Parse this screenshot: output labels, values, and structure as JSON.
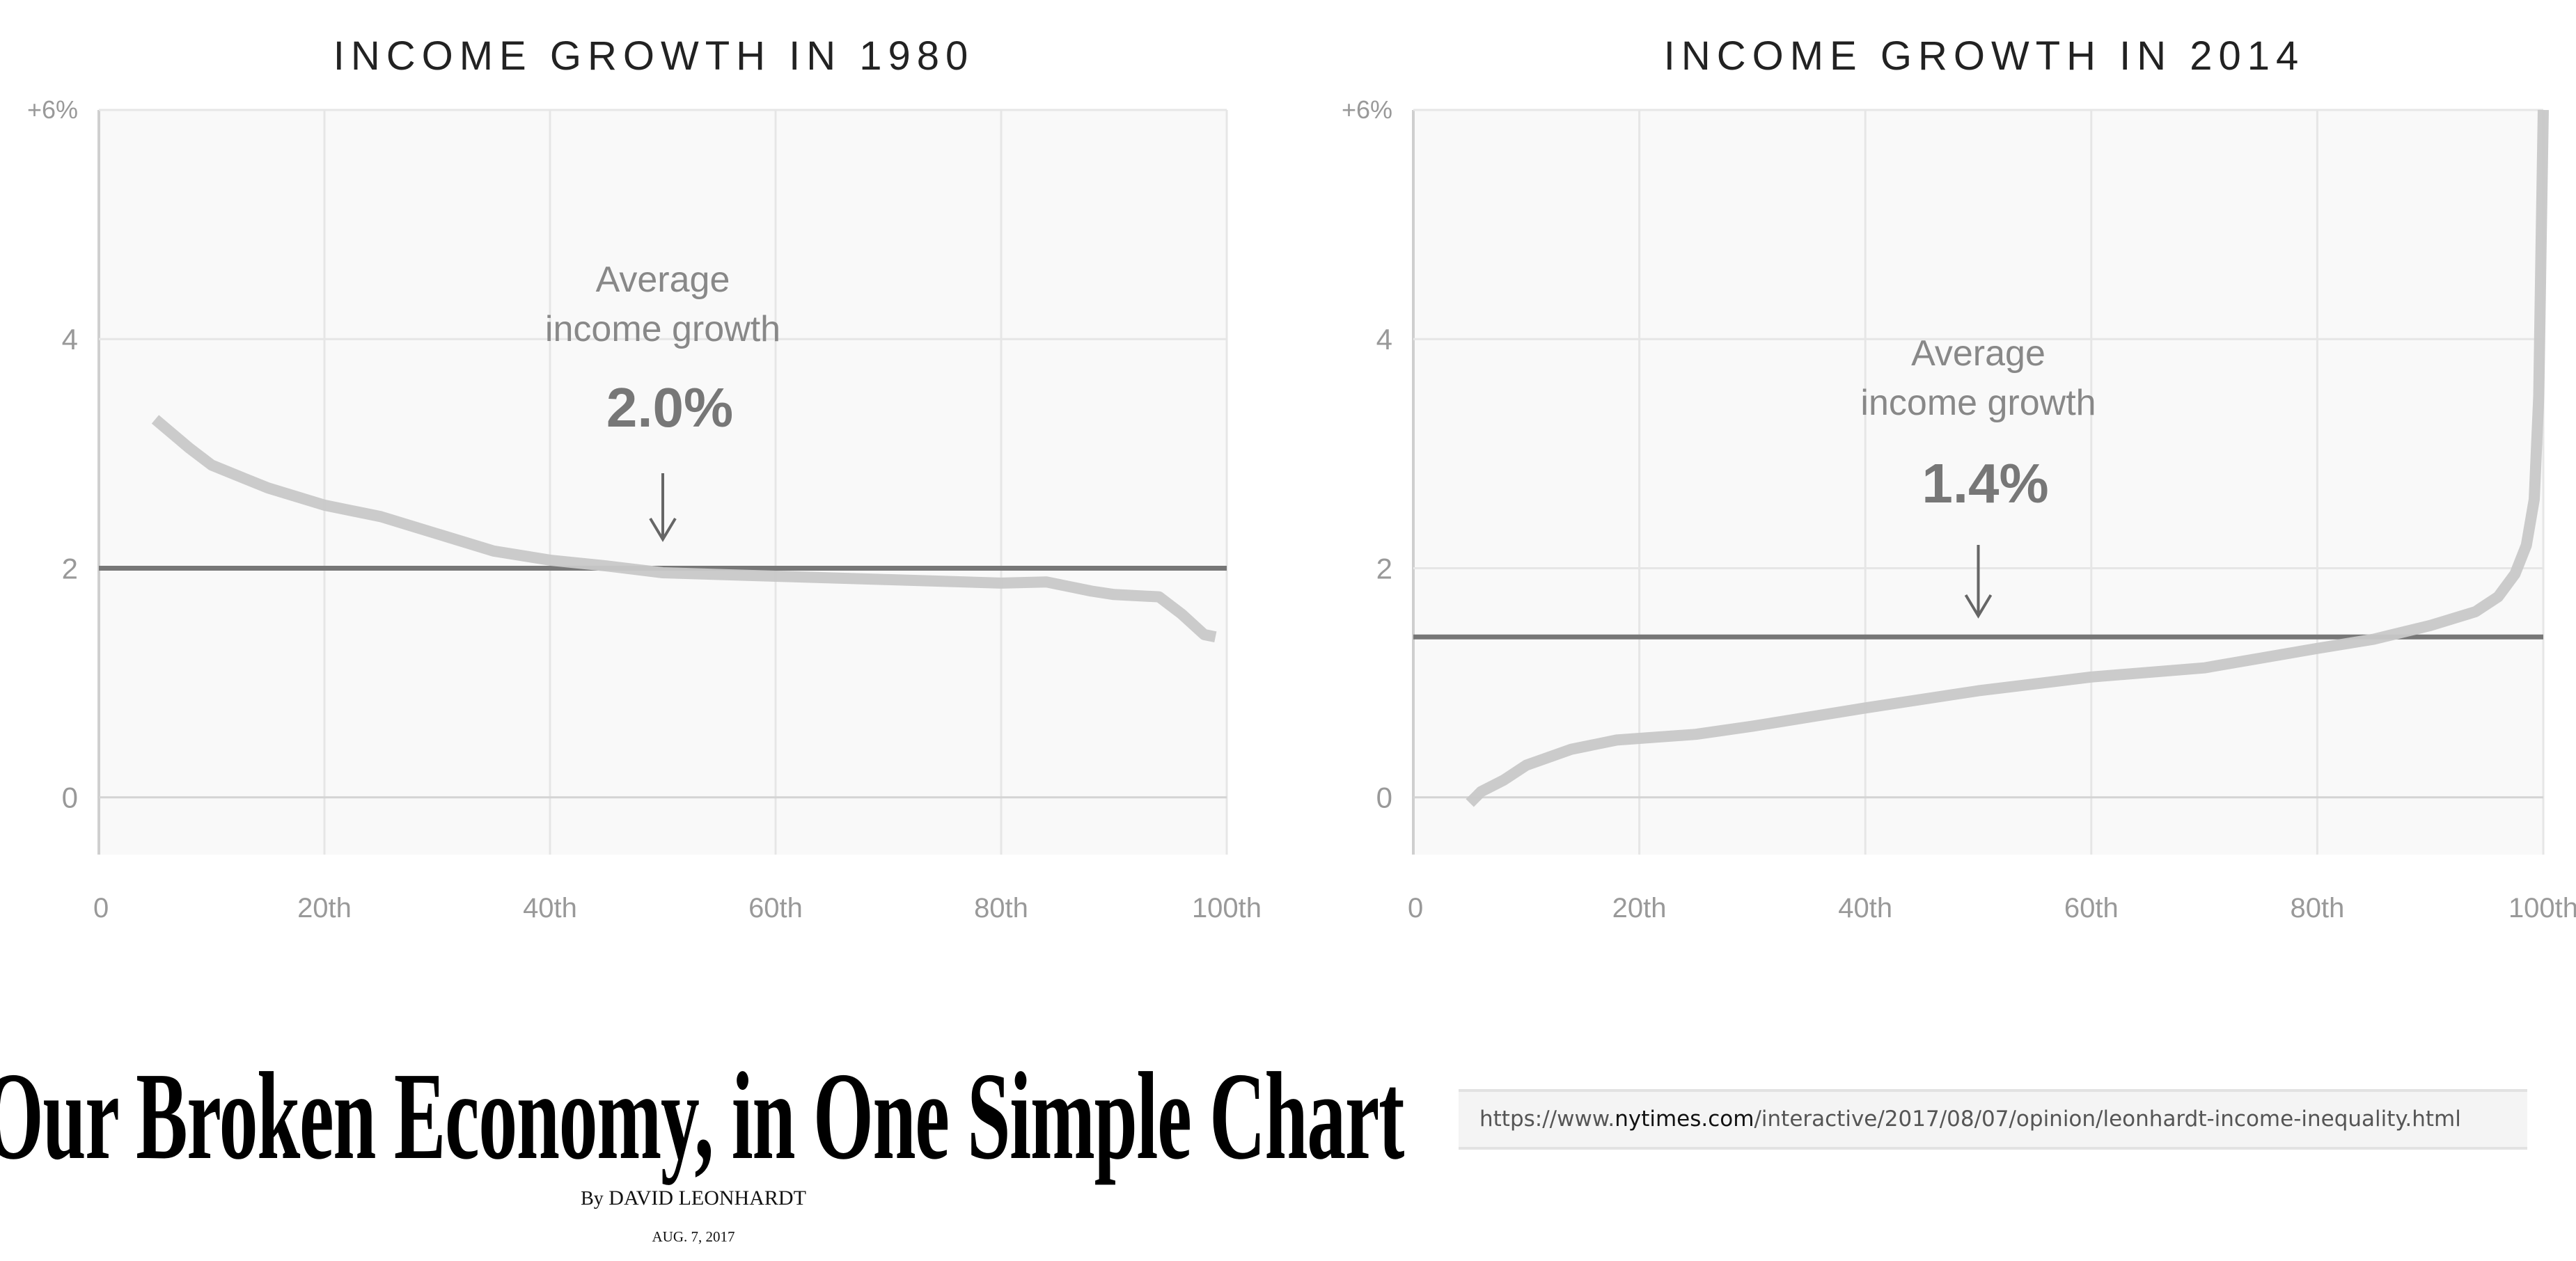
{
  "chart_data": [
    {
      "type": "line",
      "title": "INCOME GROWTH IN 1980",
      "xlim": [
        0,
        100
      ],
      "ylim": [
        -0.5,
        6
      ],
      "x_ticks": [
        0,
        20,
        40,
        60,
        80,
        100
      ],
      "x_tick_labels": [
        "0",
        "20th",
        "40th",
        "60th",
        "80th",
        "100th"
      ],
      "y_ticks": [
        0,
        2,
        4,
        6
      ],
      "y_tick_labels": [
        "0",
        "2",
        "4",
        "+6%"
      ],
      "grid": true,
      "series": [
        {
          "x": [
            5,
            8,
            10,
            13,
            15,
            20,
            25,
            30,
            35,
            40,
            45,
            50,
            60,
            70,
            80,
            84,
            88,
            90,
            94,
            96,
            98,
            99
          ],
          "y": [
            3.3,
            3.05,
            2.9,
            2.78,
            2.7,
            2.55,
            2.45,
            2.3,
            2.15,
            2.07,
            2.02,
            1.96,
            1.93,
            1.9,
            1.87,
            1.88,
            1.8,
            1.77,
            1.75,
            1.6,
            1.42,
            1.4
          ]
        }
      ],
      "average": 2.0,
      "annotation": {
        "line1": "Average",
        "line2": "income growth",
        "value": "2.0%",
        "x": 50
      },
      "colors": {
        "curve": "#c8c8c8",
        "average_line": "#777777",
        "plot_bg": "#f9f9f9",
        "grid": "#e6e6e6"
      }
    },
    {
      "type": "line",
      "title": "INCOME GROWTH IN 2014",
      "xlim": [
        0,
        100
      ],
      "ylim": [
        -0.5,
        6
      ],
      "x_ticks": [
        0,
        20,
        40,
        60,
        80,
        100
      ],
      "x_tick_labels": [
        "0",
        "20th",
        "40th",
        "60th",
        "80th",
        "100th"
      ],
      "y_ticks": [
        0,
        2,
        4,
        6
      ],
      "y_tick_labels": [
        "0",
        "2",
        "4",
        "+6%"
      ],
      "grid": true,
      "series": [
        {
          "x": [
            5,
            6,
            8,
            10,
            14,
            18,
            25,
            30,
            40,
            50,
            60,
            70,
            80,
            85,
            90,
            94,
            96,
            97.5,
            98.5,
            99.2,
            99.6,
            99.8,
            100
          ],
          "y": [
            -0.05,
            0.05,
            0.15,
            0.28,
            0.42,
            0.5,
            0.55,
            0.62,
            0.78,
            0.93,
            1.05,
            1.13,
            1.3,
            1.38,
            1.5,
            1.62,
            1.75,
            1.95,
            2.2,
            2.6,
            3.5,
            4.8,
            6.0
          ]
        }
      ],
      "average": 1.4,
      "annotation": {
        "line1": "Average",
        "line2": "income growth",
        "value": "1.4%",
        "x": 50
      },
      "colors": {
        "curve": "#c8c8c8",
        "average_line": "#777777",
        "plot_bg": "#f9f9f9",
        "grid": "#e6e6e6"
      }
    }
  ],
  "article": {
    "headline": "Our Broken Economy, in One Simple Chart",
    "byline_prefix": "By",
    "author": "DAVID LEONHARDT",
    "date": "AUG. 7, 2017"
  },
  "url_bar": {
    "prefix": "https://www.",
    "host": "nytimes.com",
    "path": "/interactive/2017/08/07/opinion/leonhardt-income-inequality.html"
  }
}
